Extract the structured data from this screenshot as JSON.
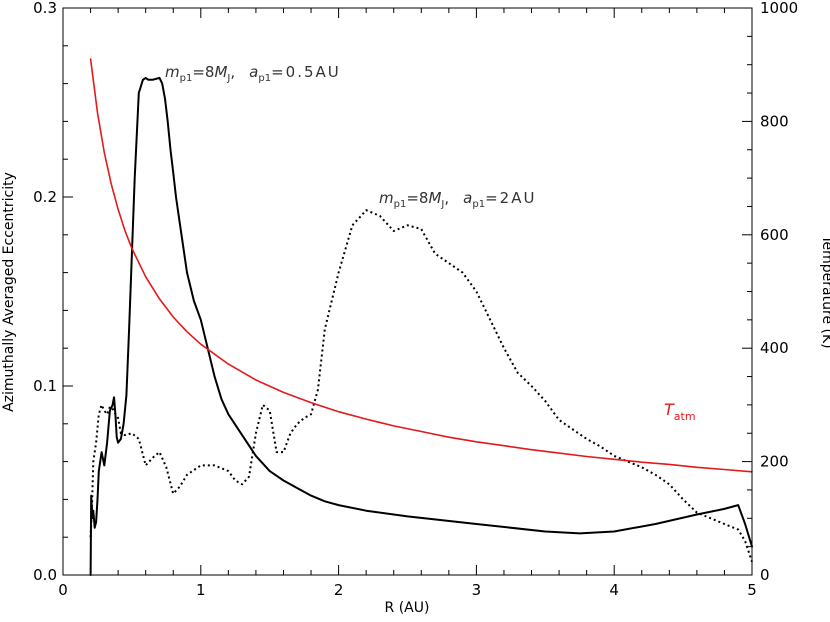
{
  "chart_data": {
    "type": "line",
    "title": "",
    "xlabel": "R (AU)",
    "ylabel": "Azimuthally Averaged Eccentricity",
    "y2label": "Temperature (K)",
    "xlim": [
      0,
      5
    ],
    "ylim": [
      0,
      0.3
    ],
    "y2lim": [
      0,
      1000
    ],
    "grid": false,
    "x_ticks": [
      "0",
      "1",
      "2",
      "3",
      "4",
      "5"
    ],
    "y_ticks": [
      "0.0",
      "0.1",
      "0.2",
      "0.3"
    ],
    "y2_ticks": [
      "0",
      "200",
      "400",
      "600",
      "800",
      "1000"
    ],
    "colors": {
      "eccentricity": "#000000",
      "temperature": "#e31a1c"
    },
    "annotations": {
      "a1": {
        "m_sym": "m",
        "m_sub": "p1",
        "eq1": "=8",
        "M_sym": "M",
        "M_sub": "J",
        "comma": ",",
        "a_sym": "a",
        "a_sub": "p1",
        "eq2": "=0.5AU"
      },
      "a2": {
        "m_sym": "m",
        "m_sub": "p1",
        "eq1": "=8",
        "M_sym": "M",
        "M_sub": "J",
        "comma": ",",
        "a_sym": "a",
        "a_sub": "p1",
        "eq2": "=2AU"
      },
      "t": {
        "sym": "T",
        "sub": "atm"
      }
    },
    "series": [
      {
        "style": "solid",
        "color": "#000000",
        "axis": "left",
        "x": [
          0.2,
          0.205,
          0.21,
          0.215,
          0.22,
          0.23,
          0.24,
          0.25,
          0.26,
          0.28,
          0.3,
          0.32,
          0.34,
          0.36,
          0.37,
          0.38,
          0.39,
          0.4,
          0.42,
          0.44,
          0.46,
          0.48,
          0.5,
          0.52,
          0.55,
          0.58,
          0.6,
          0.62,
          0.65,
          0.7,
          0.72,
          0.74,
          0.76,
          0.78,
          0.8,
          0.82,
          0.85,
          0.9,
          0.95,
          1.0,
          1.05,
          1.1,
          1.15,
          1.2,
          1.3,
          1.4,
          1.5,
          1.6,
          1.7,
          1.8,
          1.9,
          2.0,
          2.2,
          2.5,
          3.0,
          3.5,
          3.75,
          4.0,
          4.3,
          4.6,
          4.8,
          4.9,
          4.95,
          5.0
        ],
        "y": [
          0.0,
          0.042,
          0.035,
          0.03,
          0.034,
          0.025,
          0.028,
          0.04,
          0.055,
          0.065,
          0.058,
          0.07,
          0.087,
          0.09,
          0.094,
          0.085,
          0.073,
          0.07,
          0.072,
          0.08,
          0.095,
          0.13,
          0.17,
          0.21,
          0.255,
          0.262,
          0.263,
          0.262,
          0.262,
          0.263,
          0.26,
          0.252,
          0.24,
          0.225,
          0.213,
          0.2,
          0.185,
          0.16,
          0.145,
          0.135,
          0.12,
          0.105,
          0.093,
          0.085,
          0.074,
          0.063,
          0.055,
          0.05,
          0.046,
          0.042,
          0.039,
          0.037,
          0.034,
          0.031,
          0.027,
          0.023,
          0.022,
          0.023,
          0.027,
          0.032,
          0.035,
          0.037,
          0.027,
          0.015
        ]
      },
      {
        "style": "dotted",
        "color": "#000000",
        "axis": "left",
        "x": [
          0.2,
          0.21,
          0.22,
          0.24,
          0.26,
          0.28,
          0.3,
          0.32,
          0.34,
          0.36,
          0.38,
          0.4,
          0.42,
          0.45,
          0.5,
          0.55,
          0.6,
          0.65,
          0.7,
          0.75,
          0.8,
          0.85,
          0.9,
          1.0,
          1.1,
          1.2,
          1.25,
          1.3,
          1.35,
          1.4,
          1.45,
          1.5,
          1.55,
          1.6,
          1.65,
          1.7,
          1.75,
          1.8,
          1.85,
          1.9,
          2.0,
          2.1,
          2.2,
          2.3,
          2.4,
          2.5,
          2.6,
          2.7,
          2.8,
          2.9,
          3.0,
          3.1,
          3.2,
          3.3,
          3.4,
          3.5,
          3.6,
          3.7,
          3.8,
          3.9,
          4.0,
          4.1,
          4.2,
          4.3,
          4.4,
          4.5,
          4.6,
          4.7,
          4.8,
          4.9,
          4.95,
          5.0
        ],
        "y": [
          0.02,
          0.035,
          0.06,
          0.07,
          0.085,
          0.09,
          0.087,
          0.085,
          0.089,
          0.088,
          0.085,
          0.083,
          0.075,
          0.074,
          0.075,
          0.072,
          0.058,
          0.062,
          0.065,
          0.057,
          0.043,
          0.047,
          0.053,
          0.058,
          0.058,
          0.055,
          0.05,
          0.048,
          0.052,
          0.075,
          0.09,
          0.087,
          0.065,
          0.065,
          0.075,
          0.08,
          0.083,
          0.085,
          0.098,
          0.13,
          0.16,
          0.185,
          0.193,
          0.19,
          0.182,
          0.185,
          0.183,
          0.17,
          0.165,
          0.16,
          0.15,
          0.135,
          0.12,
          0.107,
          0.1,
          0.092,
          0.082,
          0.077,
          0.072,
          0.068,
          0.063,
          0.06,
          0.057,
          0.053,
          0.048,
          0.04,
          0.033,
          0.03,
          0.027,
          0.024,
          0.018,
          0.007
        ]
      },
      {
        "style": "solid",
        "color": "#e31a1c",
        "axis": "right",
        "x": [
          0.2,
          0.25,
          0.3,
          0.35,
          0.4,
          0.45,
          0.5,
          0.6,
          0.7,
          0.8,
          0.9,
          1.0,
          1.2,
          1.4,
          1.6,
          1.8,
          2.0,
          2.2,
          2.4,
          2.6,
          2.8,
          3.0,
          3.2,
          3.4,
          3.6,
          3.8,
          4.0,
          4.2,
          4.4,
          4.6,
          4.8,
          5.0
        ],
        "y": [
          910,
          815,
          745,
          690,
          645,
          607,
          576,
          526,
          487,
          455,
          429,
          407,
          372,
          344,
          322,
          304,
          288,
          275,
          263,
          253,
          243,
          235,
          228,
          221,
          215,
          209,
          204,
          199,
          195,
          190,
          186,
          182
        ]
      }
    ]
  }
}
